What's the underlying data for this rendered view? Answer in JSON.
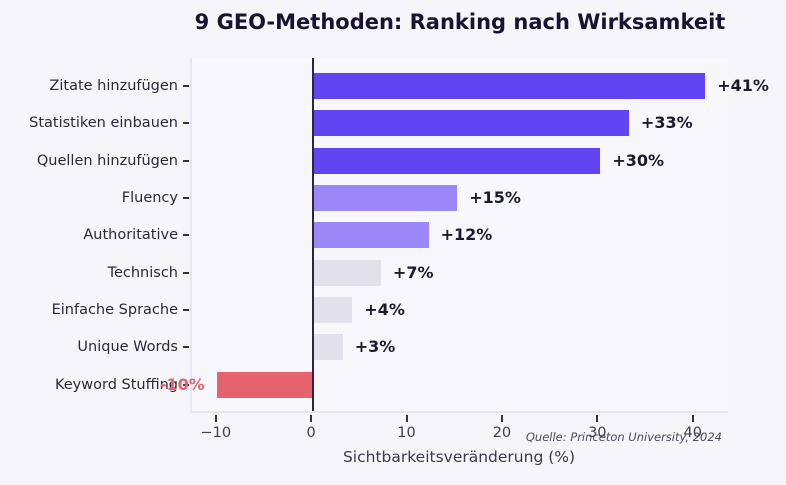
{
  "title": "9 GEO-Methoden: Ranking nach Wirksamkeit",
  "x_axis_label": "Sichtbarkeitsveränderung (%)",
  "source_note": "Quelle: Princeton University, 2024",
  "chart_data": {
    "type": "bar",
    "orientation": "horizontal",
    "title": "9 GEO-Methoden: Ranking nach Wirksamkeit",
    "xlabel": "Sichtbarkeitsveränderung (%)",
    "ylabel": "",
    "categories": [
      "Zitate hinzufügen",
      "Statistiken einbauen",
      "Quellen hinzufügen",
      "Fluency",
      "Authoritative",
      "Technisch",
      "Einfache Sprache",
      "Unique Words",
      "Keyword Stuffing"
    ],
    "values": [
      41,
      33,
      30,
      15,
      12,
      7,
      4,
      3,
      -10
    ],
    "value_labels": [
      "+41%",
      "+33%",
      "+30%",
      "+15%",
      "+12%",
      "+7%",
      "+4%",
      "+3%",
      "-10%"
    ],
    "bar_colors": [
      "#6245f2",
      "#6245f2",
      "#6245f2",
      "#9c87f8",
      "#9c87f8",
      "#e2e0eb",
      "#e2e0eb",
      "#e2e0eb",
      "#e5636c"
    ],
    "value_label_colors": [
      "#1b1b2e",
      "#1b1b2e",
      "#1b1b2e",
      "#1b1b2e",
      "#1b1b2e",
      "#1b1b2e",
      "#1b1b2e",
      "#1b1b2e",
      "#e5636c"
    ],
    "x_ticks": [
      {
        "value": -10,
        "label": "−10"
      },
      {
        "value": 0,
        "label": "0"
      },
      {
        "value": 10,
        "label": "10"
      },
      {
        "value": 20,
        "label": "20"
      },
      {
        "value": 30,
        "label": "30"
      },
      {
        "value": 40,
        "label": "40"
      }
    ],
    "xlim": [
      -12.7,
      43.7
    ],
    "zero_line": true,
    "zero_line_color": "#2e2540",
    "grid": false,
    "legend": false,
    "source": "Quelle: Princeton University, 2024"
  }
}
